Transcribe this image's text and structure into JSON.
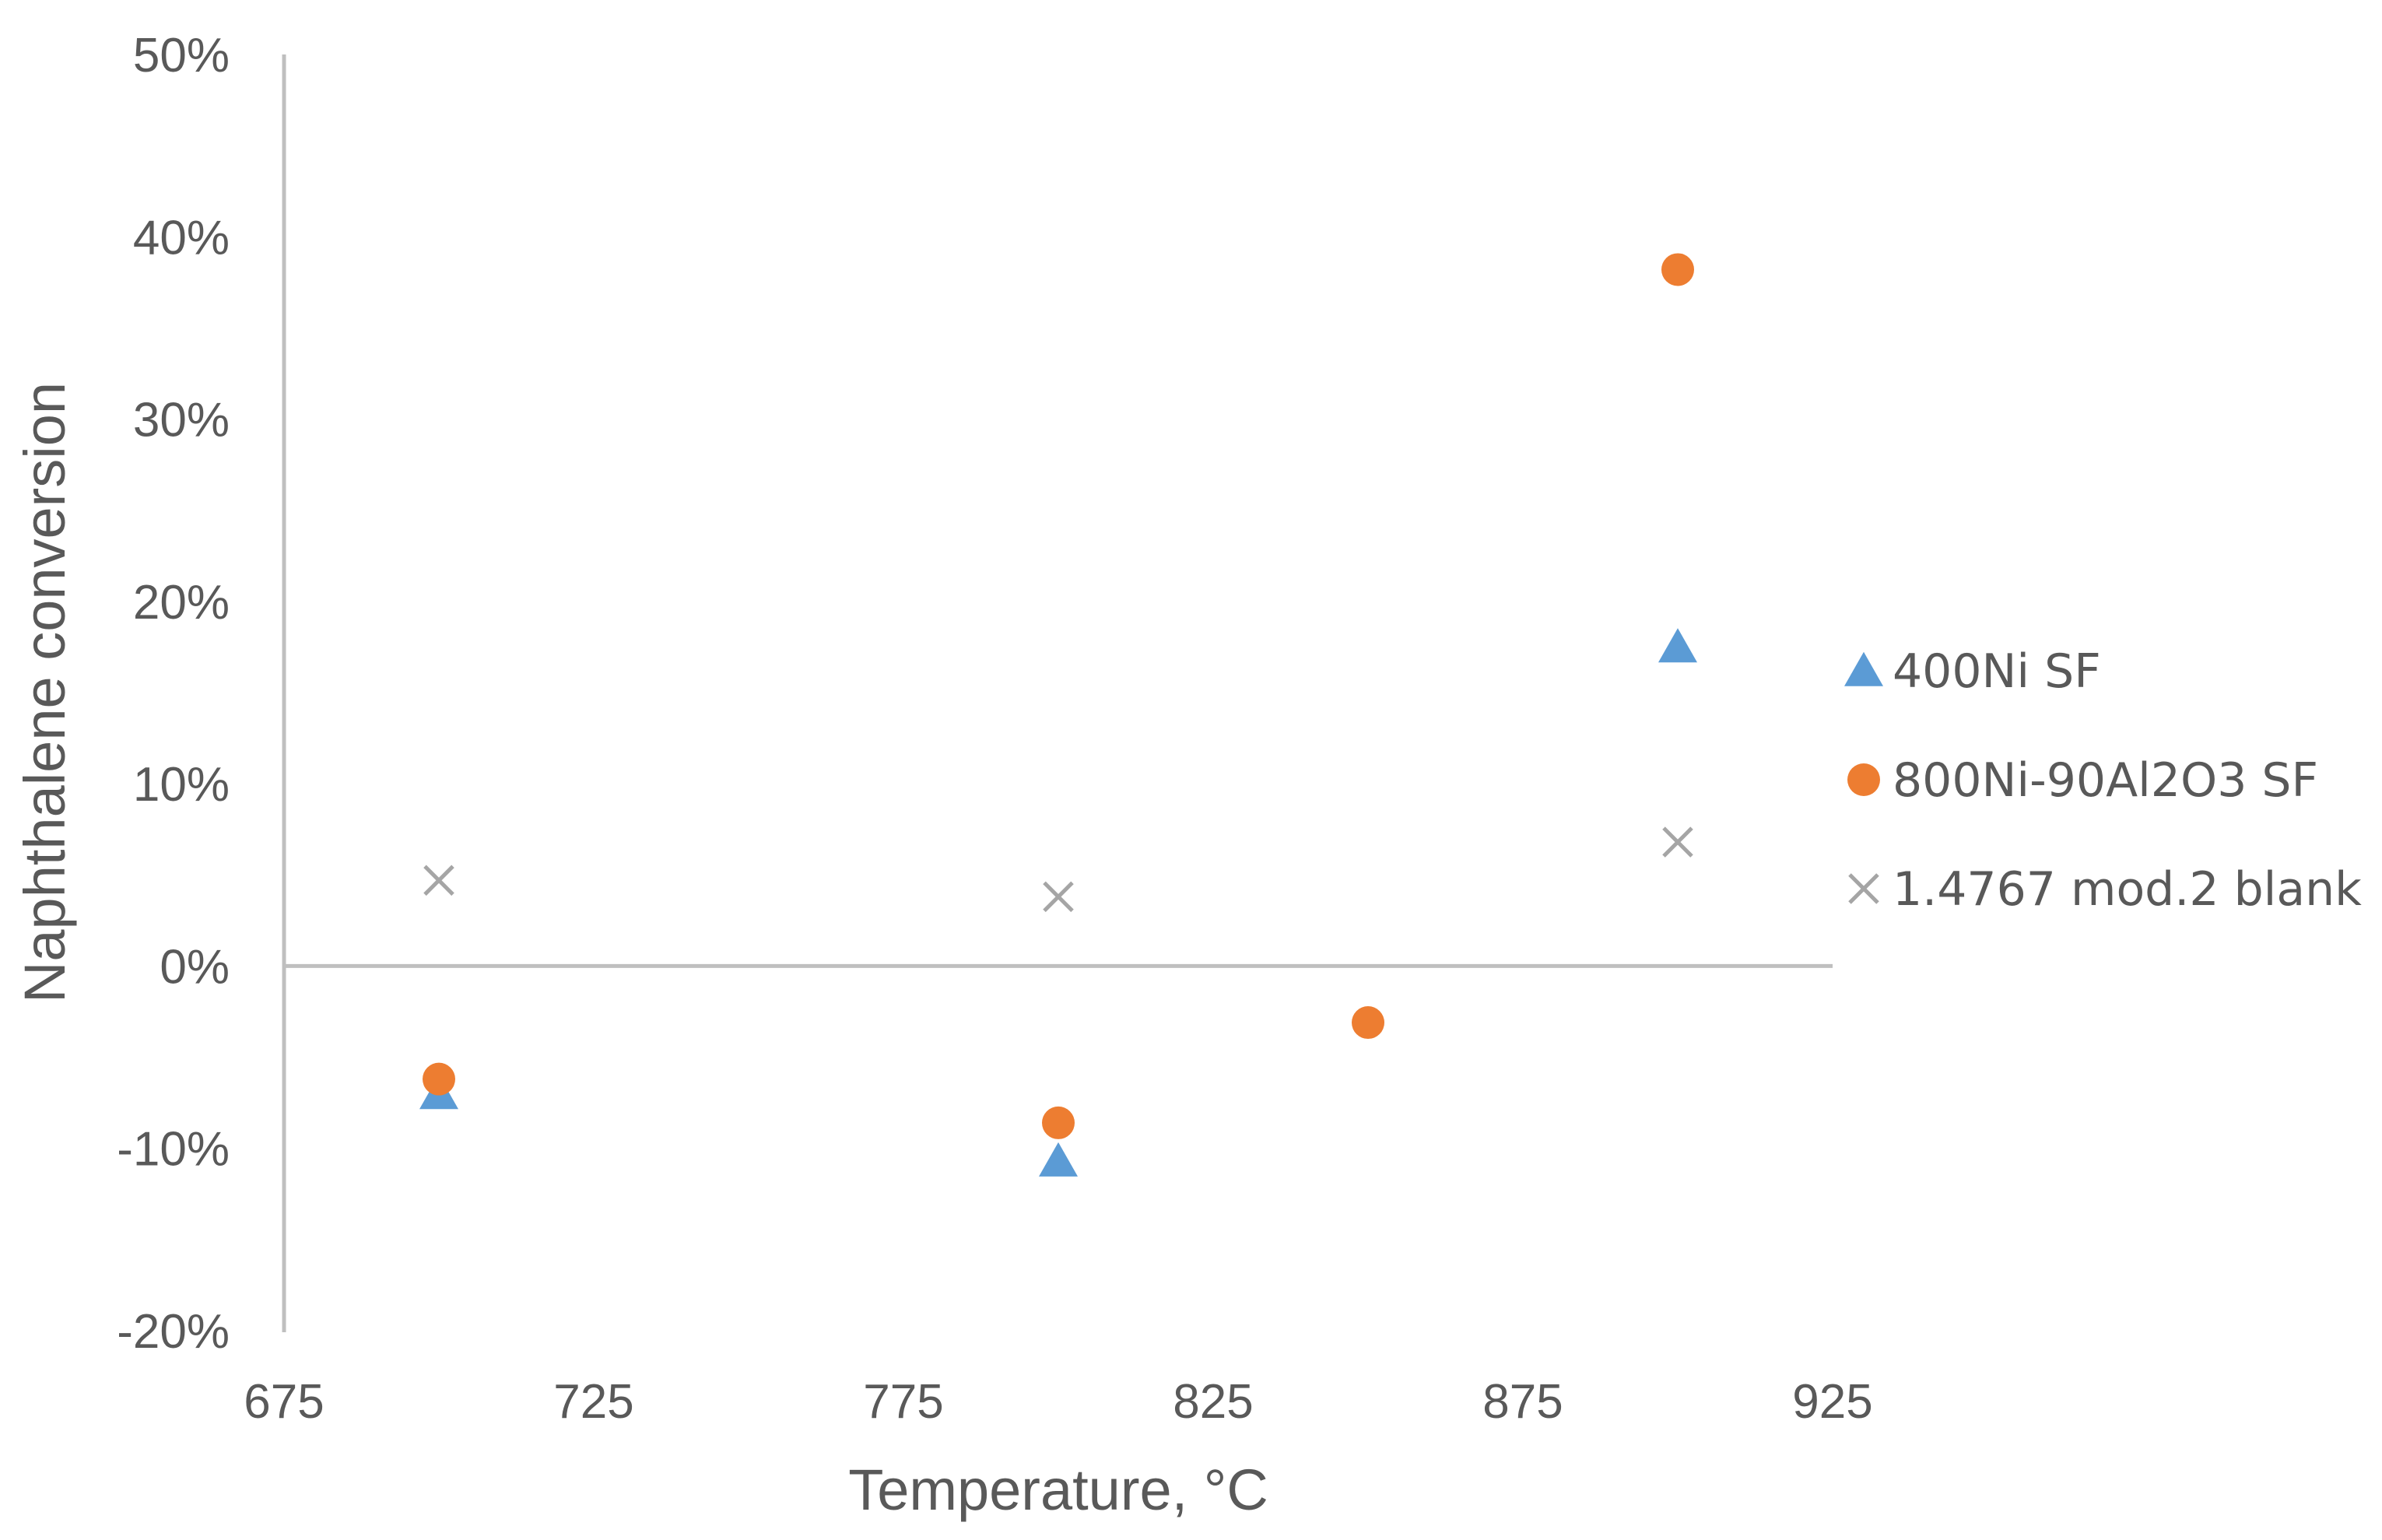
{
  "chart_data": {
    "type": "scatter",
    "title": "",
    "xlabel": "Temperature, °C",
    "ylabel": "Naphthalene conversion",
    "xlim": [
      675,
      925
    ],
    "ylim": [
      -0.2,
      0.5
    ],
    "x_ticks": [
      675,
      725,
      775,
      825,
      875,
      925
    ],
    "x_tick_labels": [
      "675",
      "725",
      "775",
      "825",
      "875",
      "925"
    ],
    "y_ticks": [
      -0.2,
      -0.1,
      0,
      0.1,
      0.2,
      0.3,
      0.4,
      0.5
    ],
    "y_tick_labels": [
      "-20%",
      "-10%",
      "0%",
      "10%",
      "20%",
      "30%",
      "40%",
      "50%"
    ],
    "grid": false,
    "legend_position": "right",
    "series": [
      {
        "name": "400Ni SF",
        "marker": "triangle",
        "color": "#5B9BD5",
        "points": [
          {
            "x": 700,
            "y": -0.07
          },
          {
            "x": 800,
            "y": -0.107
          },
          {
            "x": 900,
            "y": 0.175
          }
        ]
      },
      {
        "name": "800Ni-90Al2O3 SF",
        "marker": "circle",
        "color": "#ED7D31",
        "points": [
          {
            "x": 700,
            "y": -0.062
          },
          {
            "x": 800,
            "y": -0.086
          },
          {
            "x": 850,
            "y": -0.031
          },
          {
            "x": 900,
            "y": 0.382
          }
        ]
      },
      {
        "name": "1.4767 mod.2 blank",
        "marker": "x",
        "color": "#A5A5A5",
        "points": [
          {
            "x": 700,
            "y": 0.047
          },
          {
            "x": 800,
            "y": 0.038
          },
          {
            "x": 900,
            "y": 0.068
          }
        ]
      }
    ]
  }
}
